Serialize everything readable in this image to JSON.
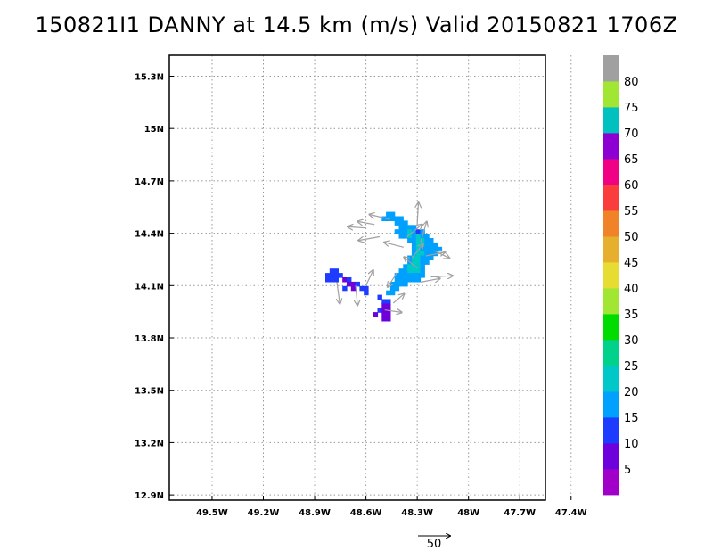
{
  "title": "150821I1 DANNY at 14.5 km (m/s) Valid 20150821 1706Z",
  "chart_data": {
    "type": "heatmap",
    "title": "150821I1 DANNY at 14.5 km (m/s) Valid 20150821 1706Z",
    "x_ticks": [
      "49.5W",
      "49.2W",
      "48.9W",
      "48.6W",
      "48.3W",
      "48W",
      "47.7W",
      "47.4W"
    ],
    "y_ticks": [
      "15.3N",
      "15N",
      "14.7N",
      "14.4N",
      "14.1N",
      "13.8N",
      "13.5N",
      "13.2N",
      "12.9N"
    ],
    "xlim": [
      -49.75,
      -47.55
    ],
    "ylim": [
      12.87,
      15.42
    ],
    "grid": true,
    "colorbar": {
      "ticks": [
        "5",
        "10",
        "15",
        "20",
        "25",
        "30",
        "35",
        "40",
        "45",
        "50",
        "55",
        "60",
        "65",
        "70",
        "75",
        "80"
      ],
      "colors": [
        "#a000c8",
        "#6e00dc",
        "#1e3cff",
        "#00a0ff",
        "#00c8c8",
        "#00d28c",
        "#00dc00",
        "#a0e632",
        "#e6dc32",
        "#e6af2d",
        "#f08228",
        "#fa3c3c",
        "#f00082",
        "#8c00d2",
        "#00c0c0",
        "#a0e632",
        "#a0a0a0"
      ]
    },
    "cells_cell_size_deg": 0.025,
    "cells": [
      [
        -48.47,
        14.51,
        15
      ],
      [
        -48.445,
        14.51,
        15
      ],
      [
        -48.495,
        14.485,
        15
      ],
      [
        -48.47,
        14.485,
        15
      ],
      [
        -48.445,
        14.485,
        15
      ],
      [
        -48.42,
        14.485,
        15
      ],
      [
        -48.395,
        14.485,
        15
      ],
      [
        -48.42,
        14.46,
        15
      ],
      [
        -48.395,
        14.46,
        15
      ],
      [
        -48.37,
        14.46,
        15
      ],
      [
        -48.395,
        14.435,
        15
      ],
      [
        -48.37,
        14.435,
        15
      ],
      [
        -48.345,
        14.435,
        15
      ],
      [
        -48.32,
        14.435,
        15
      ],
      [
        -48.42,
        14.41,
        15
      ],
      [
        -48.395,
        14.41,
        15
      ],
      [
        -48.37,
        14.41,
        15
      ],
      [
        -48.345,
        14.41,
        20
      ],
      [
        -48.32,
        14.41,
        15
      ],
      [
        -48.295,
        14.41,
        10
      ],
      [
        -48.27,
        14.41,
        15
      ],
      [
        -48.395,
        14.385,
        15
      ],
      [
        -48.37,
        14.385,
        15
      ],
      [
        -48.345,
        14.385,
        20
      ],
      [
        -48.32,
        14.385,
        15
      ],
      [
        -48.295,
        14.385,
        20
      ],
      [
        -48.27,
        14.385,
        15
      ],
      [
        -48.245,
        14.385,
        15
      ],
      [
        -48.345,
        14.36,
        15
      ],
      [
        -48.32,
        14.36,
        15
      ],
      [
        -48.295,
        14.36,
        20
      ],
      [
        -48.27,
        14.36,
        20
      ],
      [
        -48.245,
        14.36,
        15
      ],
      [
        -48.22,
        14.36,
        15
      ],
      [
        -48.32,
        14.335,
        15
      ],
      [
        -48.295,
        14.335,
        20
      ],
      [
        -48.27,
        14.335,
        20
      ],
      [
        -48.245,
        14.335,
        15
      ],
      [
        -48.22,
        14.335,
        15
      ],
      [
        -48.195,
        14.335,
        15
      ],
      [
        -48.32,
        14.31,
        15
      ],
      [
        -48.295,
        14.31,
        20
      ],
      [
        -48.27,
        14.31,
        15
      ],
      [
        -48.245,
        14.31,
        15
      ],
      [
        -48.22,
        14.31,
        15
      ],
      [
        -48.195,
        14.31,
        15
      ],
      [
        -48.17,
        14.31,
        15
      ],
      [
        -48.32,
        14.285,
        15
      ],
      [
        -48.295,
        14.285,
        20
      ],
      [
        -48.27,
        14.285,
        20
      ],
      [
        -48.245,
        14.285,
        15
      ],
      [
        -48.22,
        14.285,
        15
      ],
      [
        -48.195,
        14.285,
        15
      ],
      [
        -48.345,
        14.26,
        15
      ],
      [
        -48.32,
        14.26,
        20
      ],
      [
        -48.295,
        14.26,
        20
      ],
      [
        -48.27,
        14.26,
        15
      ],
      [
        -48.245,
        14.26,
        15
      ],
      [
        -48.22,
        14.26,
        15
      ],
      [
        -48.345,
        14.235,
        15
      ],
      [
        -48.32,
        14.235,
        20
      ],
      [
        -48.295,
        14.235,
        20
      ],
      [
        -48.27,
        14.235,
        15
      ],
      [
        -48.245,
        14.235,
        15
      ],
      [
        -48.37,
        14.21,
        15
      ],
      [
        -48.345,
        14.21,
        20
      ],
      [
        -48.32,
        14.21,
        20
      ],
      [
        -48.295,
        14.21,
        20
      ],
      [
        -48.27,
        14.21,
        15
      ],
      [
        -48.395,
        14.185,
        15
      ],
      [
        -48.37,
        14.185,
        15
      ],
      [
        -48.345,
        14.185,
        20
      ],
      [
        -48.32,
        14.185,
        20
      ],
      [
        -48.295,
        14.185,
        20
      ],
      [
        -48.27,
        14.185,
        15
      ],
      [
        -48.42,
        14.16,
        15
      ],
      [
        -48.395,
        14.16,
        15
      ],
      [
        -48.37,
        14.16,
        15
      ],
      [
        -48.345,
        14.16,
        15
      ],
      [
        -48.32,
        14.16,
        15
      ],
      [
        -48.295,
        14.16,
        15
      ],
      [
        -48.27,
        14.16,
        15
      ],
      [
        -48.42,
        14.135,
        15
      ],
      [
        -48.395,
        14.135,
        15
      ],
      [
        -48.37,
        14.135,
        15
      ],
      [
        -48.345,
        14.135,
        15
      ],
      [
        -48.32,
        14.135,
        15
      ],
      [
        -48.295,
        14.135,
        15
      ],
      [
        -48.445,
        14.11,
        15
      ],
      [
        -48.42,
        14.11,
        15
      ],
      [
        -48.395,
        14.11,
        15
      ],
      [
        -48.37,
        14.11,
        15
      ],
      [
        -48.445,
        14.085,
        15
      ],
      [
        -48.42,
        14.085,
        15
      ],
      [
        -48.47,
        14.06,
        15
      ],
      [
        -48.445,
        14.06,
        15
      ],
      [
        -48.52,
        14.035,
        10
      ],
      [
        -48.495,
        14.01,
        10
      ],
      [
        -48.47,
        14.01,
        10
      ],
      [
        -48.495,
        13.985,
        5
      ],
      [
        -48.47,
        13.985,
        5
      ],
      [
        -48.52,
        13.96,
        10
      ],
      [
        -48.495,
        13.96,
        5
      ],
      [
        -48.47,
        13.96,
        5
      ],
      [
        -48.545,
        13.935,
        5
      ],
      [
        -48.495,
        13.935,
        5
      ],
      [
        -48.47,
        13.935,
        5
      ],
      [
        -48.495,
        13.91,
        5
      ],
      [
        -48.47,
        13.91,
        5
      ],
      [
        -48.8,
        14.185,
        10
      ],
      [
        -48.775,
        14.185,
        10
      ],
      [
        -48.825,
        14.16,
        10
      ],
      [
        -48.8,
        14.16,
        10
      ],
      [
        -48.775,
        14.16,
        10
      ],
      [
        -48.75,
        14.16,
        10
      ],
      [
        -48.825,
        14.135,
        10
      ],
      [
        -48.8,
        14.135,
        10
      ],
      [
        -48.775,
        14.135,
        10
      ],
      [
        -48.725,
        14.135,
        5
      ],
      [
        -48.7,
        14.135,
        10
      ],
      [
        -48.7,
        14.11,
        5
      ],
      [
        -48.675,
        14.11,
        5
      ],
      [
        -48.65,
        14.11,
        10
      ],
      [
        -48.725,
        14.085,
        10
      ],
      [
        -48.675,
        14.085,
        5
      ],
      [
        -48.625,
        14.085,
        10
      ],
      [
        -48.6,
        14.085,
        10
      ],
      [
        -48.6,
        14.06,
        10
      ]
    ],
    "wind_vectors": [
      [
        -48.46,
        14.48,
        -0.34,
        0.08
      ],
      [
        -48.55,
        14.45,
        -0.28,
        0.05
      ],
      [
        -48.52,
        14.38,
        -0.35,
        -0.06
      ],
      [
        -48.6,
        14.43,
        -0.3,
        0.02
      ],
      [
        -48.28,
        14.35,
        0.1,
        0.33
      ],
      [
        -48.3,
        14.45,
        0.02,
        0.36
      ],
      [
        -48.38,
        14.32,
        -0.32,
        0.08
      ],
      [
        -48.25,
        14.27,
        0.32,
        0.06
      ],
      [
        -48.2,
        14.3,
        0.25,
        -0.12
      ],
      [
        -48.33,
        14.26,
        0.18,
        0.22
      ],
      [
        -48.3,
        14.2,
        -0.22,
        0.18
      ],
      [
        -48.22,
        14.15,
        0.36,
        0.02
      ],
      [
        -48.28,
        14.12,
        0.32,
        0.06
      ],
      [
        -48.42,
        14.17,
        -0.15,
        -0.22
      ],
      [
        -48.77,
        14.12,
        0.05,
        -0.35
      ],
      [
        -48.66,
        14.1,
        0.03,
        -0.32
      ],
      [
        -48.6,
        14.1,
        0.12,
        0.25
      ],
      [
        -48.49,
        13.96,
        0.28,
        -0.04
      ],
      [
        -48.44,
        14.0,
        0.18,
        0.15
      ],
      [
        -48.36,
        14.38,
        0.25,
        0.2
      ]
    ],
    "reference_vector": {
      "label": "50",
      "value_ms": 50
    }
  }
}
